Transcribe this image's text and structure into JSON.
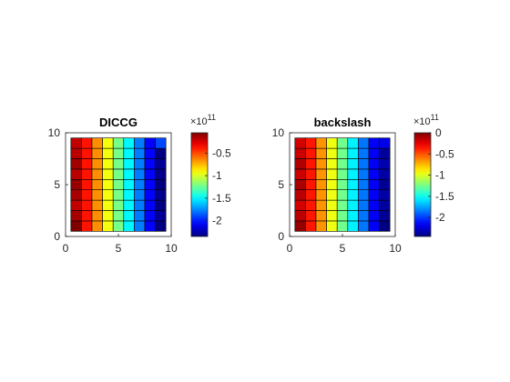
{
  "chart_data": [
    {
      "type": "heatmap",
      "title": "DICCG",
      "x": [
        1,
        2,
        3,
        4,
        5,
        6,
        7,
        8,
        9
      ],
      "y": [
        1,
        2,
        3,
        4,
        5,
        6,
        7,
        8,
        9
      ],
      "xlim": [
        0,
        10
      ],
      "ylim": [
        0,
        10
      ],
      "xticks": [
        "0",
        "5",
        "10"
      ],
      "yticks": [
        "0",
        "5",
        "10"
      ],
      "values": [
        [
          -0.05,
          -0.38,
          -0.66,
          -0.94,
          -1.22,
          -1.5,
          -1.78,
          -2.06,
          -2.42
        ],
        [
          -0.14,
          -0.38,
          -0.66,
          -0.94,
          -1.22,
          -1.5,
          -1.78,
          -2.06,
          -2.3
        ],
        [
          -0.2,
          -0.38,
          -0.66,
          -0.94,
          -1.22,
          -1.5,
          -1.78,
          -2.06,
          -2.34
        ],
        [
          -0.14,
          -0.38,
          -0.66,
          -0.94,
          -1.22,
          -1.5,
          -1.78,
          -2.06,
          -2.32
        ],
        [
          -0.1,
          -0.38,
          -0.66,
          -0.94,
          -1.22,
          -1.5,
          -1.78,
          -2.06,
          -2.36
        ],
        [
          -0.18,
          -0.38,
          -0.66,
          -0.94,
          -1.22,
          -1.5,
          -1.78,
          -2.06,
          -2.32
        ],
        [
          -0.12,
          -0.38,
          -0.66,
          -0.94,
          -1.22,
          -1.5,
          -1.78,
          -2.06,
          -2.3
        ],
        [
          -0.18,
          -0.38,
          -0.66,
          -0.94,
          -1.22,
          -1.5,
          -1.78,
          -2.06,
          -2.34
        ],
        [
          -0.2,
          -0.38,
          -0.66,
          -0.94,
          -1.22,
          -1.5,
          -1.78,
          -2.06,
          -1.9
        ]
      ],
      "colorbar": {
        "range": [
          -2.35,
          -0.05
        ],
        "ticks": [
          "-0.5",
          "-1",
          "-1.5",
          "-2"
        ],
        "tick_values": [
          -0.5,
          -1.0,
          -1.5,
          -2.0
        ],
        "exponent_base": "×10",
        "exponent_power": "11"
      },
      "colormap": "jet",
      "grid": true
    },
    {
      "type": "heatmap",
      "title": "backslash",
      "x": [
        1,
        2,
        3,
        4,
        5,
        6,
        7,
        8,
        9
      ],
      "y": [
        1,
        2,
        3,
        4,
        5,
        6,
        7,
        8,
        9
      ],
      "xlim": [
        0,
        10
      ],
      "ylim": [
        0,
        10
      ],
      "xticks": [
        "0",
        "5",
        "10"
      ],
      "yticks": [
        "0",
        "5",
        "10"
      ],
      "values": [
        [
          -0.05,
          -0.36,
          -0.66,
          -0.96,
          -1.26,
          -1.56,
          -1.86,
          -2.16,
          -2.46
        ],
        [
          -0.14,
          -0.36,
          -0.66,
          -0.96,
          -1.26,
          -1.56,
          -1.86,
          -2.16,
          -2.4
        ],
        [
          -0.2,
          -0.36,
          -0.66,
          -0.96,
          -1.26,
          -1.56,
          -1.86,
          -2.16,
          -2.38
        ],
        [
          -0.14,
          -0.36,
          -0.66,
          -0.96,
          -1.26,
          -1.56,
          -1.86,
          -2.16,
          -2.36
        ],
        [
          -0.1,
          -0.36,
          -0.66,
          -0.96,
          -1.26,
          -1.56,
          -1.86,
          -2.16,
          -2.4
        ],
        [
          -0.18,
          -0.36,
          -0.66,
          -0.96,
          -1.26,
          -1.56,
          -1.86,
          -2.16,
          -2.36
        ],
        [
          -0.12,
          -0.36,
          -0.66,
          -0.96,
          -1.26,
          -1.56,
          -1.86,
          -2.16,
          -2.34
        ],
        [
          -0.18,
          -0.36,
          -0.66,
          -0.96,
          -1.26,
          -1.56,
          -1.86,
          -2.16,
          -2.38
        ],
        [
          -0.2,
          -0.36,
          -0.66,
          -0.96,
          -1.26,
          -1.56,
          -1.86,
          -2.16,
          -2.2
        ]
      ],
      "colorbar": {
        "range": [
          -2.45,
          0
        ],
        "ticks": [
          "0",
          "-0.5",
          "-1",
          "-1.5",
          "-2"
        ],
        "tick_values": [
          0,
          -0.5,
          -1.0,
          -1.5,
          -2.0
        ],
        "exponent_base": "×10",
        "exponent_power": "11"
      },
      "colormap": "jet",
      "grid": true
    }
  ]
}
